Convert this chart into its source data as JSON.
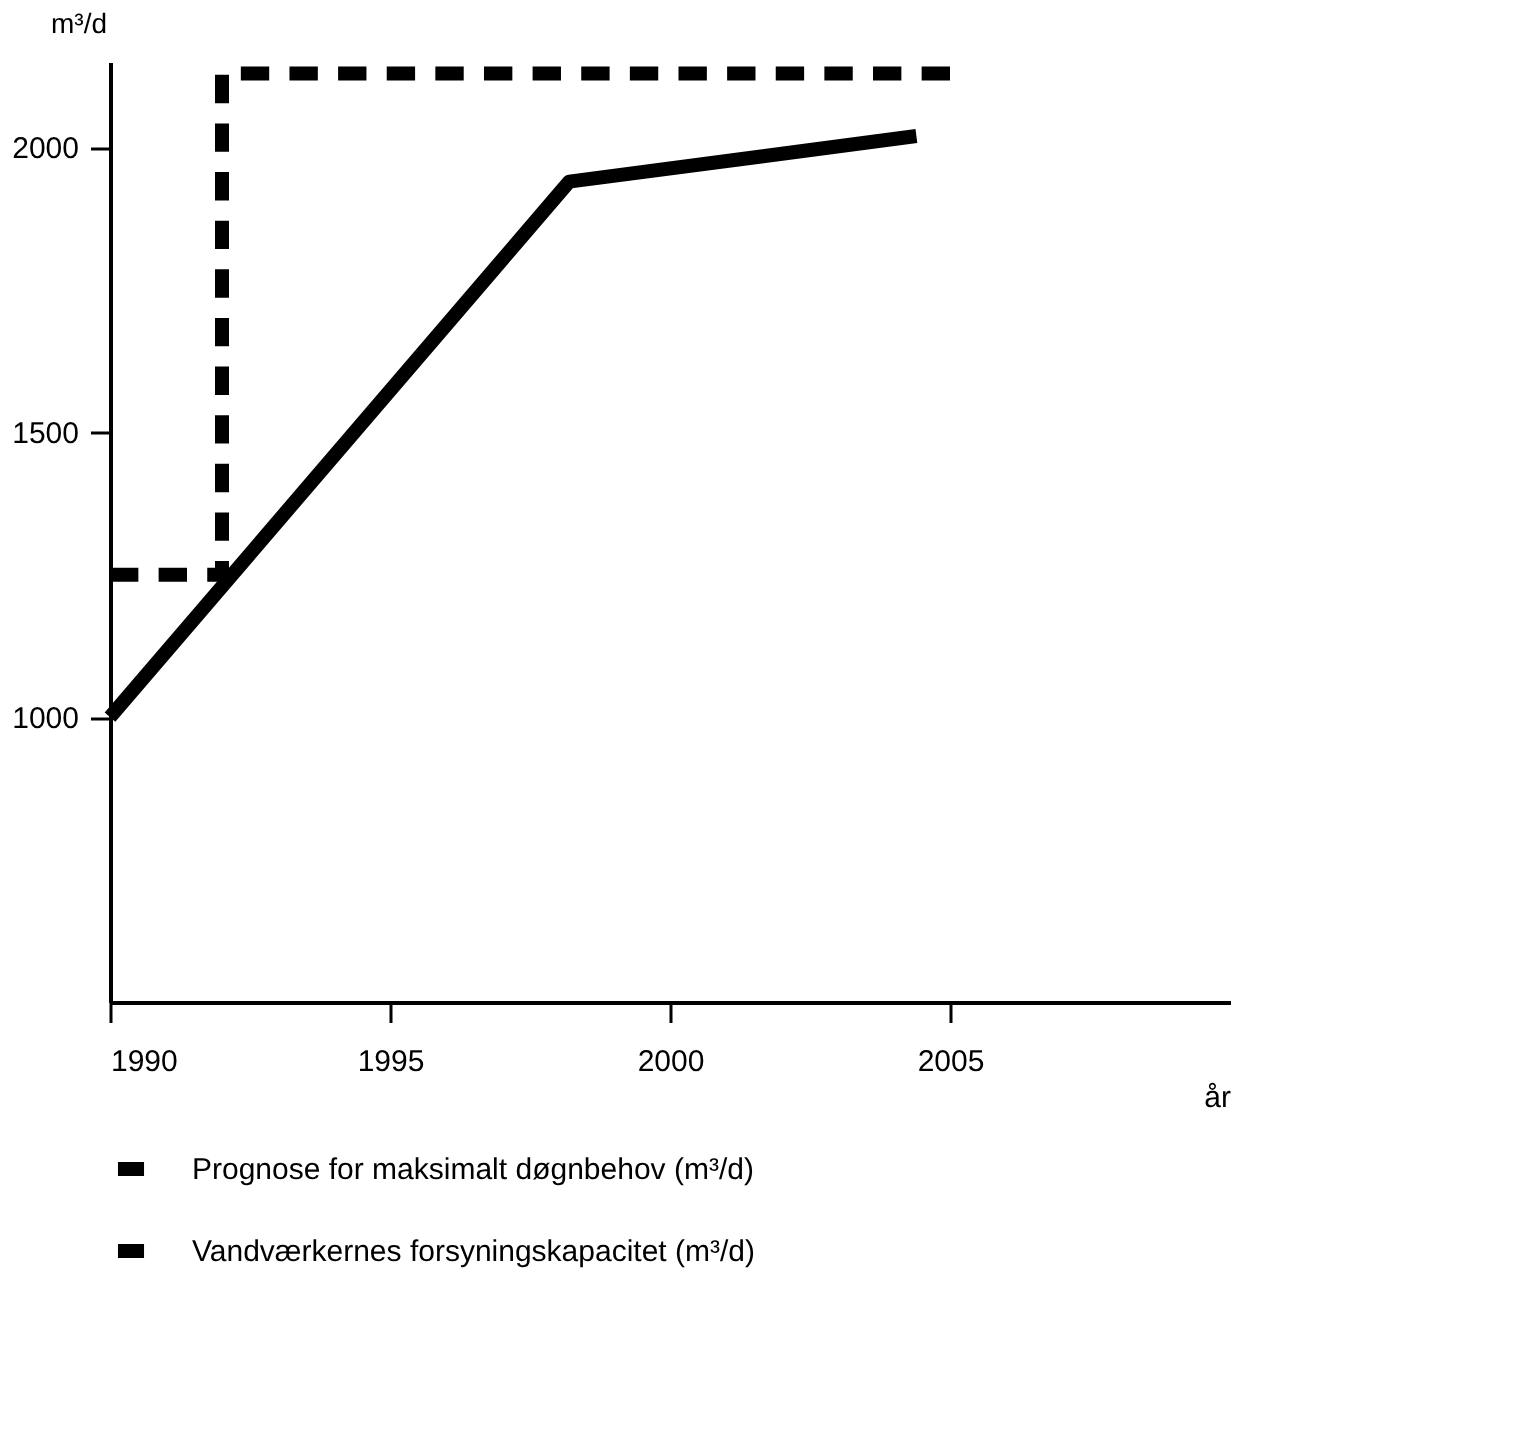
{
  "chart_data": {
    "type": "line",
    "xlabel": "år",
    "ylabel": "m³/d",
    "xlim": [
      1990,
      2010
    ],
    "ylim": [
      500,
      2150
    ],
    "xticks": [
      1990,
      1995,
      2000,
      2005
    ],
    "yticks": [
      1000,
      1500,
      2000
    ],
    "grid": false,
    "legend": "bottom",
    "marker": "none",
    "series": [
      {
        "name": "Prognose for maksimalt døgnbehov (m³/d)",
        "color": "#000000",
        "line_style": "solid",
        "x": [
          1990,
          1998.2,
          2004.4
        ],
        "values": [
          1000,
          1940,
          2020
        ]
      },
      {
        "name": "Vandværkernes forsyningskapacitet (m³/d)",
        "color": "#000000",
        "line_style": "dashed",
        "x": [
          1990,
          1992,
          1992,
          2005
        ],
        "values": [
          1250,
          1250,
          2130,
          2130
        ]
      }
    ]
  }
}
